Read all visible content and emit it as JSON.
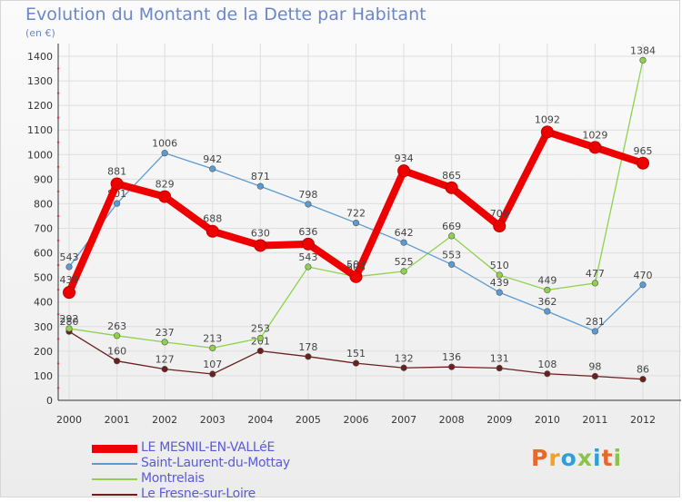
{
  "header": {
    "title": "Evolution du Montant de la Dette par Habitant",
    "unit": "(en €)"
  },
  "logo": {
    "text": "Proxiti",
    "colors": [
      "#e8672a",
      "#f0a12a",
      "#2f9fd8",
      "#8bc34a",
      "#2f9fd8",
      "#e8672a",
      "#8bc34a"
    ]
  },
  "chart_data": {
    "type": "line",
    "title": "Evolution du Montant de la Dette par Habitant",
    "ylabel": "(en €)",
    "xlabel": "",
    "ylim": [
      0,
      1400
    ],
    "yticks": [
      0,
      100,
      200,
      300,
      400,
      500,
      600,
      700,
      800,
      900,
      1000,
      1100,
      1200,
      1300,
      1400
    ],
    "categories": [
      "2000",
      "2001",
      "2002",
      "2003",
      "2004",
      "2005",
      "2006",
      "2007",
      "2008",
      "2009",
      "2010",
      "2011",
      "2012"
    ],
    "grid": true,
    "legend_position": "bottom-left",
    "series": [
      {
        "name": "LE MESNIL-EN-VALLéE",
        "color": "#ee0000",
        "values": [
          439,
          881,
          829,
          688,
          630,
          636,
          503,
          934,
          865,
          709,
          1092,
          1029,
          965
        ]
      },
      {
        "name": "Saint-Laurent-du-Mottay",
        "color": "#5b9bd5",
        "values": [
          543,
          801,
          1006,
          942,
          871,
          798,
          722,
          642,
          553,
          439,
          362,
          281,
          470
        ]
      },
      {
        "name": "Montrelais",
        "color": "#8fd14f",
        "values": [
          292,
          263,
          237,
          213,
          253,
          543,
          503,
          525,
          669,
          510,
          449,
          477,
          1384
        ]
      },
      {
        "name": "Le Fresne-sur-Loire",
        "color": "#6b1f1f",
        "values": [
          280,
          160,
          127,
          107,
          201,
          178,
          151,
          132,
          136,
          131,
          108,
          98,
          86
        ]
      }
    ]
  }
}
